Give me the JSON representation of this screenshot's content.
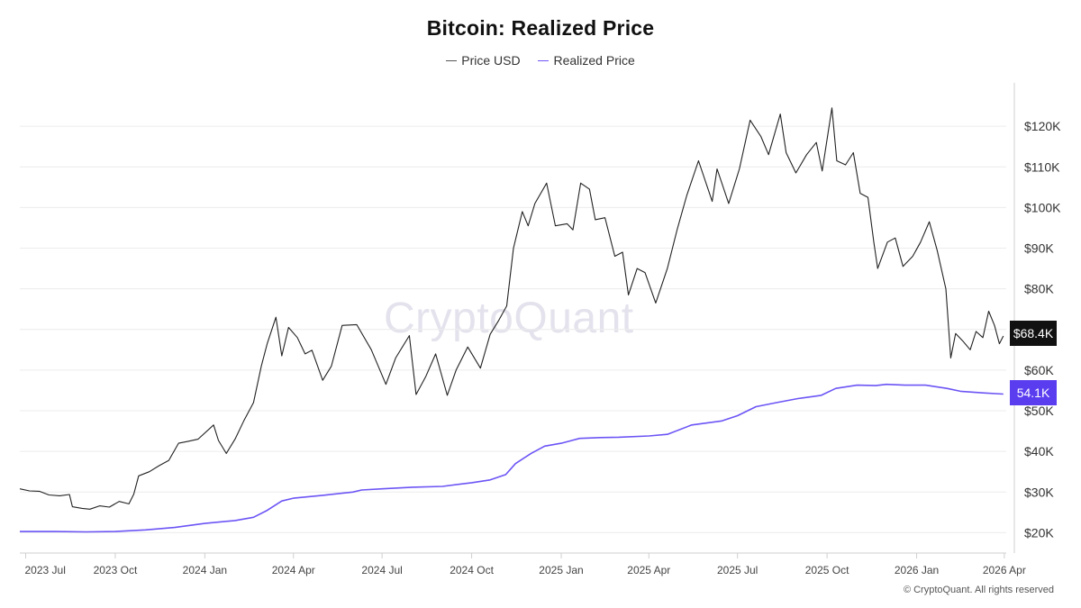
{
  "chart_data": {
    "type": "line",
    "title": "Bitcoin: Realized Price",
    "legend": [
      "Price USD",
      "Realized Price"
    ],
    "legend_position": "top-center",
    "grid": true,
    "ylim": [
      15000,
      130000
    ],
    "y_ticks": [
      20000,
      30000,
      40000,
      50000,
      60000,
      70000,
      80000,
      90000,
      100000,
      110000,
      120000
    ],
    "y_tick_labels": [
      "$20K",
      "$30K",
      "$40K",
      "$50K",
      "$60K",
      "",
      "$80K",
      "$90K",
      "$100K",
      "$110K",
      "$120K"
    ],
    "x_ticks": [
      "2023-07-01",
      "2023-10-01",
      "2024-01-01",
      "2024-04-01",
      "2024-07-01",
      "2024-10-01",
      "2025-01-01",
      "2025-04-01",
      "2025-07-01",
      "2025-10-01",
      "2026-01-01",
      "2026-04-01"
    ],
    "x_tick_labels": [
      "2023 Jul",
      "2023 Oct",
      "2024 Jan",
      "2024 Apr",
      "2024 Jul",
      "2024 Oct",
      "2025 Jan",
      "2025 Apr",
      "2025 Jul",
      "2025 Oct",
      "2026 Jan",
      "2026 Apr"
    ],
    "xlim": [
      "2023-06-25",
      "2026-04-03"
    ],
    "series": [
      {
        "name": "Price USD",
        "color": "#222222",
        "last_label": "$68.4K",
        "points": [
          [
            "2023-06-25",
            30800
          ],
          [
            "2023-07-05",
            30300
          ],
          [
            "2023-07-15",
            30200
          ],
          [
            "2023-07-25",
            29300
          ],
          [
            "2023-08-05",
            29100
          ],
          [
            "2023-08-15",
            29400
          ],
          [
            "2023-08-18",
            26400
          ],
          [
            "2023-08-28",
            26000
          ],
          [
            "2023-09-05",
            25800
          ],
          [
            "2023-09-15",
            26600
          ],
          [
            "2023-09-25",
            26300
          ],
          [
            "2023-10-05",
            27700
          ],
          [
            "2023-10-15",
            27100
          ],
          [
            "2023-10-20",
            29500
          ],
          [
            "2023-10-25",
            34000
          ],
          [
            "2023-11-05",
            35000
          ],
          [
            "2023-11-15",
            36500
          ],
          [
            "2023-11-25",
            37800
          ],
          [
            "2023-12-05",
            42000
          ],
          [
            "2023-12-15",
            42500
          ],
          [
            "2023-12-25",
            43000
          ],
          [
            "2024-01-10",
            46500
          ],
          [
            "2024-01-15",
            42700
          ],
          [
            "2024-01-23",
            39500
          ],
          [
            "2024-02-01",
            43000
          ],
          [
            "2024-02-10",
            47500
          ],
          [
            "2024-02-20",
            52000
          ],
          [
            "2024-02-28",
            61000
          ],
          [
            "2024-03-05",
            66500
          ],
          [
            "2024-03-14",
            73000
          ],
          [
            "2024-03-20",
            63500
          ],
          [
            "2024-03-27",
            70500
          ],
          [
            "2024-04-05",
            68000
          ],
          [
            "2024-04-13",
            64000
          ],
          [
            "2024-04-20",
            64900
          ],
          [
            "2024-05-01",
            57500
          ],
          [
            "2024-05-10",
            61000
          ],
          [
            "2024-05-21",
            71000
          ],
          [
            "2024-06-05",
            71200
          ],
          [
            "2024-06-20",
            65000
          ],
          [
            "2024-07-05",
            56500
          ],
          [
            "2024-07-15",
            63000
          ],
          [
            "2024-07-29",
            68500
          ],
          [
            "2024-08-05",
            54000
          ],
          [
            "2024-08-15",
            58500
          ],
          [
            "2024-08-25",
            64000
          ],
          [
            "2024-09-06",
            53800
          ],
          [
            "2024-09-15",
            60000
          ],
          [
            "2024-09-27",
            65700
          ],
          [
            "2024-10-10",
            60500
          ],
          [
            "2024-10-20",
            68800
          ],
          [
            "2024-10-29",
            72300
          ],
          [
            "2024-11-06",
            75800
          ],
          [
            "2024-11-13",
            90000
          ],
          [
            "2024-11-22",
            99000
          ],
          [
            "2024-11-28",
            95500
          ],
          [
            "2024-12-05",
            101000
          ],
          [
            "2024-12-17",
            106000
          ],
          [
            "2024-12-26",
            95500
          ],
          [
            "2025-01-07",
            96000
          ],
          [
            "2025-01-13",
            94500
          ],
          [
            "2025-01-21",
            106000
          ],
          [
            "2025-01-30",
            104500
          ],
          [
            "2025-02-05",
            97000
          ],
          [
            "2025-02-15",
            97500
          ],
          [
            "2025-02-25",
            88000
          ],
          [
            "2025-03-05",
            89000
          ],
          [
            "2025-03-11",
            78500
          ],
          [
            "2025-03-20",
            85000
          ],
          [
            "2025-03-28",
            84000
          ],
          [
            "2025-04-08",
            76500
          ],
          [
            "2025-04-20",
            85000
          ],
          [
            "2025-04-30",
            94500
          ],
          [
            "2025-05-10",
            103000
          ],
          [
            "2025-05-22",
            111500
          ],
          [
            "2025-06-05",
            101500
          ],
          [
            "2025-06-10",
            109500
          ],
          [
            "2025-06-22",
            101000
          ],
          [
            "2025-07-03",
            109500
          ],
          [
            "2025-07-14",
            121500
          ],
          [
            "2025-07-25",
            117500
          ],
          [
            "2025-08-02",
            113000
          ],
          [
            "2025-08-14",
            123000
          ],
          [
            "2025-08-20",
            113500
          ],
          [
            "2025-08-30",
            108500
          ],
          [
            "2025-09-10",
            113000
          ],
          [
            "2025-09-20",
            116000
          ],
          [
            "2025-09-26",
            109000
          ],
          [
            "2025-10-06",
            124500
          ],
          [
            "2025-10-11",
            111500
          ],
          [
            "2025-10-20",
            110500
          ],
          [
            "2025-10-28",
            113500
          ],
          [
            "2025-11-04",
            103500
          ],
          [
            "2025-11-12",
            102500
          ],
          [
            "2025-11-18",
            91500
          ],
          [
            "2025-11-22",
            85000
          ],
          [
            "2025-12-02",
            91500
          ],
          [
            "2025-12-10",
            92500
          ],
          [
            "2025-12-18",
            85500
          ],
          [
            "2025-12-28",
            88000
          ],
          [
            "2026-01-05",
            91500
          ],
          [
            "2026-01-14",
            96500
          ],
          [
            "2026-01-22",
            89500
          ],
          [
            "2026-01-31",
            80000
          ],
          [
            "2026-02-05",
            63000
          ],
          [
            "2026-02-10",
            69000
          ],
          [
            "2026-02-18",
            67000
          ],
          [
            "2026-02-25",
            65000
          ],
          [
            "2026-03-03",
            69500
          ],
          [
            "2026-03-10",
            68000
          ],
          [
            "2026-03-16",
            74500
          ],
          [
            "2026-03-22",
            71000
          ],
          [
            "2026-03-27",
            66500
          ],
          [
            "2026-03-31",
            68400
          ]
        ]
      },
      {
        "name": "Realized Price",
        "color": "#6b55f5",
        "last_label": "54.1K",
        "points": [
          [
            "2023-06-25",
            20300
          ],
          [
            "2023-08-01",
            20300
          ],
          [
            "2023-09-01",
            20200
          ],
          [
            "2023-10-01",
            20300
          ],
          [
            "2023-11-01",
            20700
          ],
          [
            "2023-12-01",
            21300
          ],
          [
            "2024-01-01",
            22300
          ],
          [
            "2024-02-01",
            23000
          ],
          [
            "2024-02-20",
            23800
          ],
          [
            "2024-03-05",
            25500
          ],
          [
            "2024-03-20",
            27800
          ],
          [
            "2024-04-01",
            28500
          ],
          [
            "2024-05-01",
            29200
          ],
          [
            "2024-06-01",
            30000
          ],
          [
            "2024-06-10",
            30500
          ],
          [
            "2024-07-01",
            30800
          ],
          [
            "2024-08-01",
            31200
          ],
          [
            "2024-09-01",
            31400
          ],
          [
            "2024-10-01",
            32300
          ],
          [
            "2024-10-20",
            33000
          ],
          [
            "2024-11-05",
            34300
          ],
          [
            "2024-11-15",
            37000
          ],
          [
            "2024-12-01",
            39500
          ],
          [
            "2024-12-15",
            41300
          ],
          [
            "2025-01-01",
            42000
          ],
          [
            "2025-01-20",
            43200
          ],
          [
            "2025-02-10",
            43400
          ],
          [
            "2025-03-01",
            43500
          ],
          [
            "2025-04-01",
            43800
          ],
          [
            "2025-04-20",
            44200
          ],
          [
            "2025-05-15",
            46500
          ],
          [
            "2025-06-15",
            47500
          ],
          [
            "2025-07-01",
            48800
          ],
          [
            "2025-07-20",
            51000
          ],
          [
            "2025-08-10",
            52000
          ],
          [
            "2025-09-01",
            53000
          ],
          [
            "2025-09-25",
            53800
          ],
          [
            "2025-10-10",
            55500
          ],
          [
            "2025-11-01",
            56300
          ],
          [
            "2025-11-20",
            56200
          ],
          [
            "2025-12-01",
            56500
          ],
          [
            "2025-12-20",
            56300
          ],
          [
            "2026-01-10",
            56300
          ],
          [
            "2026-02-01",
            55500
          ],
          [
            "2026-02-15",
            54800
          ],
          [
            "2026-03-10",
            54400
          ],
          [
            "2026-03-31",
            54100
          ]
        ]
      }
    ]
  },
  "watermark": "CryptoQuant",
  "copyright": "© CryptoQuant. All rights reserved",
  "price_tag": "$68.4K",
  "rp_tag": "54.1K"
}
